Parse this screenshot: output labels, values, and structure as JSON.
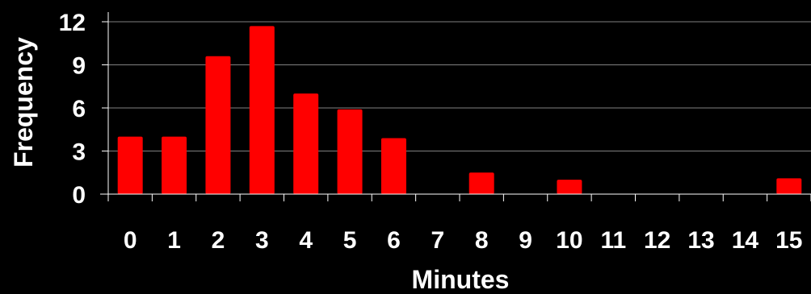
{
  "chart_data": {
    "type": "bar",
    "title": "",
    "xlabel": "Minutes",
    "ylabel": "Frequency",
    "categories": [
      "0",
      "1",
      "2",
      "3",
      "4",
      "5",
      "6",
      "7",
      "8",
      "9",
      "10",
      "11",
      "12",
      "13",
      "14",
      "15"
    ],
    "values": [
      4,
      4,
      9.6,
      11.7,
      7,
      5.9,
      3.9,
      0,
      1.5,
      0,
      1,
      0,
      0,
      0,
      0,
      1.1
    ],
    "ylim": [
      0,
      12
    ],
    "yticks": [
      0,
      3,
      6,
      9,
      12
    ],
    "grid": true,
    "legend": "none",
    "colors": {
      "background": "#000000",
      "bar": "#ff0000",
      "grid": "#808080",
      "axis": "#ffffff",
      "text": "#ffffff"
    }
  }
}
